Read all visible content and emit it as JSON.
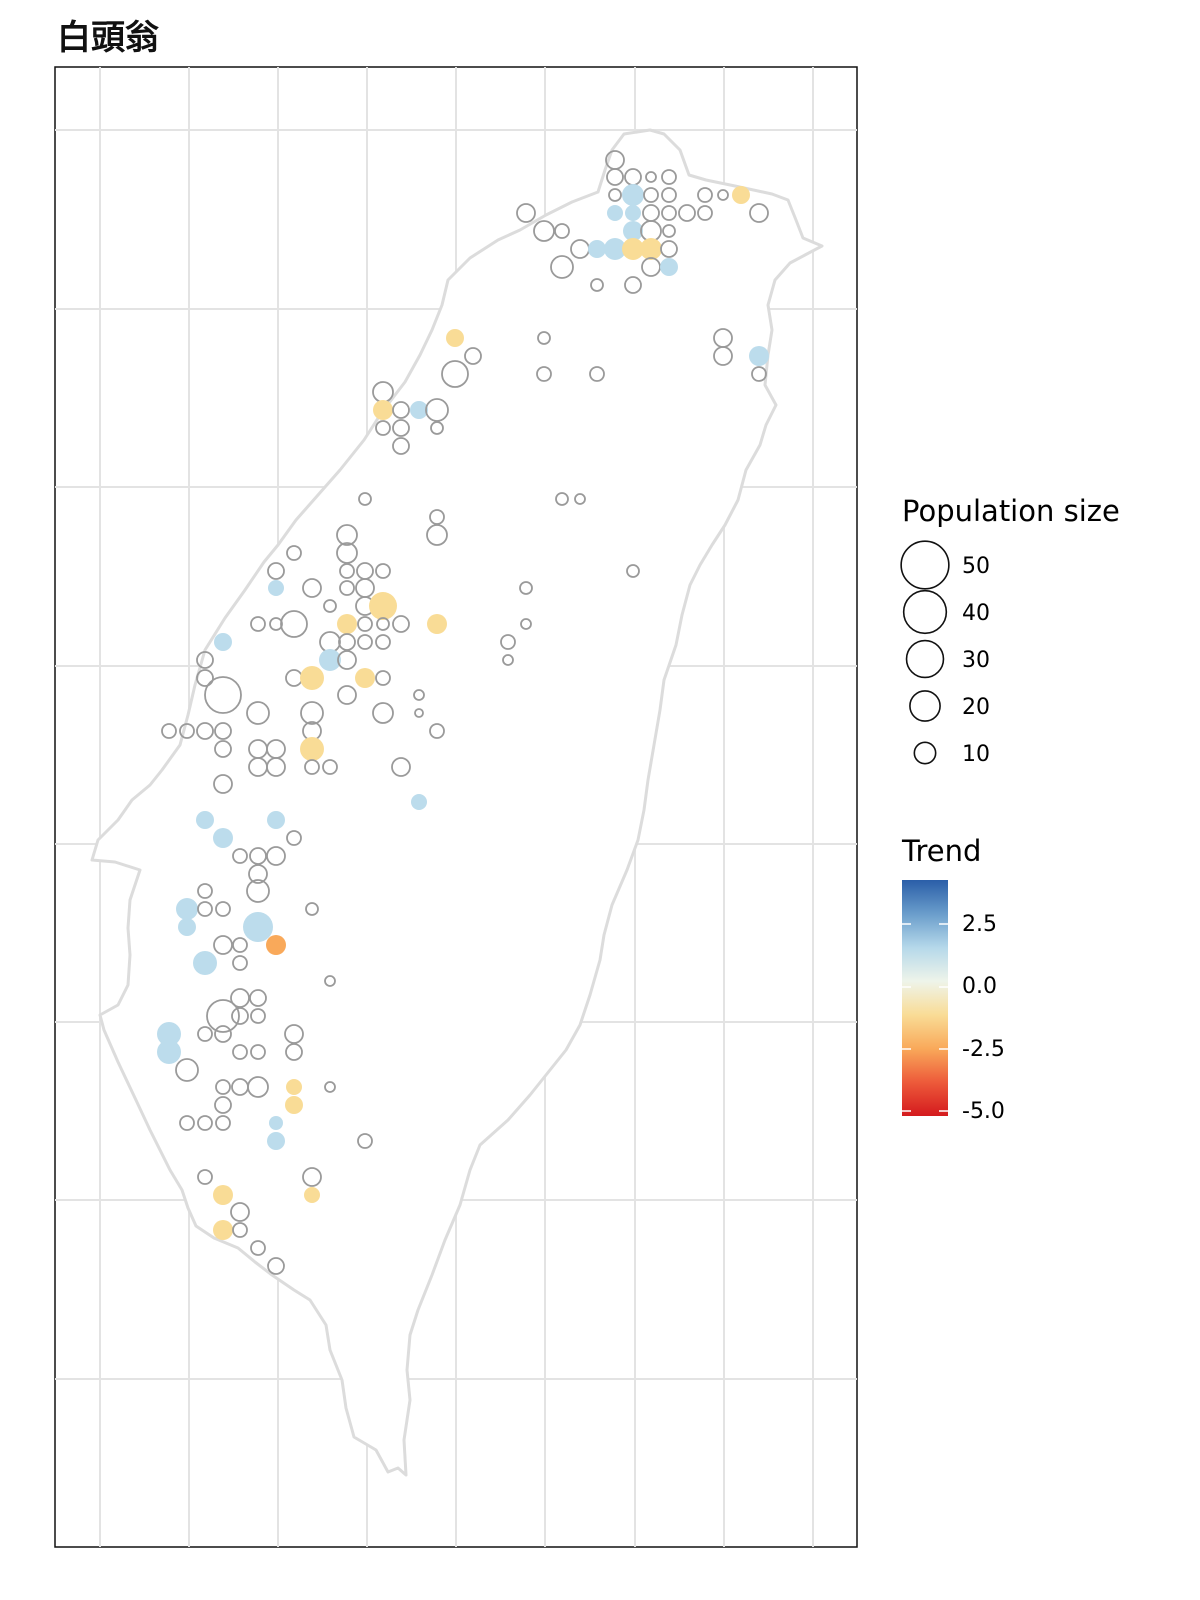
{
  "title": "白頭翁",
  "colors": {
    "panel_border": "#111111",
    "grid": "#e3e3e3",
    "coast": "#dcdcdc",
    "land": "#ffffff",
    "no_trend_stroke": "#9a9a9a",
    "blue": "#bcdcec",
    "yellow": "#f9dc96",
    "orange": "#f9a95a"
  },
  "legend": {
    "size_title": "Population size",
    "size_items": [
      {
        "value": 50,
        "label": "50"
      },
      {
        "value": 40,
        "label": "40"
      },
      {
        "value": 30,
        "label": "30"
      },
      {
        "value": 20,
        "label": "20"
      },
      {
        "value": 10,
        "label": "10"
      }
    ],
    "trend_title": "Trend",
    "trend_labels": [
      "2.5",
      "0.0",
      "-2.5",
      "-5.0"
    ],
    "trend_gradient": [
      "#2a5ea8",
      "#6a9dcb",
      "#b5d8ea",
      "#eef4ea",
      "#f9dc96",
      "#f9a95a",
      "#ed5a3a",
      "#d41a1e"
    ]
  },
  "chart_data": {
    "type": "scatter",
    "title": "白頭翁",
    "legend_position": "right",
    "grid": true,
    "points": [
      [
        615,
        160,
        "n",
        9
      ],
      [
        615,
        177,
        "n",
        8
      ],
      [
        633,
        177,
        "n",
        8
      ],
      [
        651,
        177,
        "n",
        5
      ],
      [
        669,
        177,
        "n",
        7
      ],
      [
        615,
        195,
        "n",
        6
      ],
      [
        633,
        195,
        "b",
        11
      ],
      [
        651,
        195,
        "n",
        7
      ],
      [
        669,
        195,
        "n",
        7
      ],
      [
        705,
        195,
        "n",
        7
      ],
      [
        723,
        195,
        "n",
        5
      ],
      [
        741,
        195,
        "y",
        9
      ],
      [
        526,
        213,
        "n",
        9
      ],
      [
        615,
        213,
        "b",
        8
      ],
      [
        633,
        213,
        "b",
        8
      ],
      [
        651,
        213,
        "n",
        8
      ],
      [
        669,
        213,
        "n",
        7
      ],
      [
        687,
        213,
        "n",
        8
      ],
      [
        705,
        213,
        "n",
        7
      ],
      [
        759,
        213,
        "n",
        9
      ],
      [
        544,
        231,
        "n",
        10
      ],
      [
        562,
        231,
        "n",
        7
      ],
      [
        633,
        231,
        "b",
        10
      ],
      [
        651,
        231,
        "n",
        10
      ],
      [
        669,
        231,
        "n",
        6
      ],
      [
        580,
        249,
        "n",
        9
      ],
      [
        597,
        249,
        "b",
        9
      ],
      [
        615,
        249,
        "b",
        11
      ],
      [
        633,
        249,
        "y",
        11
      ],
      [
        651,
        249,
        "y",
        11
      ],
      [
        669,
        249,
        "n",
        8
      ],
      [
        562,
        267,
        "n",
        11
      ],
      [
        651,
        267,
        "n",
        9
      ],
      [
        669,
        267,
        "b",
        9
      ],
      [
        597,
        285,
        "n",
        6
      ],
      [
        633,
        285,
        "n",
        8
      ],
      [
        455,
        338,
        "y",
        9
      ],
      [
        544,
        338,
        "n",
        6
      ],
      [
        723,
        338,
        "n",
        9
      ],
      [
        473,
        356,
        "n",
        8
      ],
      [
        723,
        356,
        "n",
        9
      ],
      [
        759,
        356,
        "b",
        10
      ],
      [
        455,
        374,
        "n",
        13
      ],
      [
        544,
        374,
        "n",
        7
      ],
      [
        597,
        374,
        "n",
        7
      ],
      [
        759,
        374,
        "n",
        7
      ],
      [
        383,
        392,
        "n",
        10
      ],
      [
        383,
        410,
        "y",
        10
      ],
      [
        401,
        410,
        "n",
        8
      ],
      [
        419,
        410,
        "b",
        9
      ],
      [
        437,
        410,
        "n",
        11
      ],
      [
        383,
        428,
        "n",
        7
      ],
      [
        401,
        428,
        "n",
        8
      ],
      [
        437,
        428,
        "n",
        6
      ],
      [
        401,
        446,
        "n",
        8
      ],
      [
        365,
        499,
        "n",
        6
      ],
      [
        562,
        499,
        "n",
        6
      ],
      [
        580,
        499,
        "n",
        5
      ],
      [
        437,
        517,
        "n",
        7
      ],
      [
        347,
        535,
        "n",
        10
      ],
      [
        437,
        535,
        "n",
        10
      ],
      [
        294,
        553,
        "n",
        7
      ],
      [
        347,
        553,
        "n",
        10
      ],
      [
        276,
        571,
        "n",
        8
      ],
      [
        347,
        571,
        "n",
        7
      ],
      [
        365,
        571,
        "n",
        8
      ],
      [
        383,
        571,
        "n",
        7
      ],
      [
        276,
        588,
        "b",
        8
      ],
      [
        312,
        588,
        "n",
        9
      ],
      [
        347,
        588,
        "n",
        7
      ],
      [
        365,
        588,
        "n",
        9
      ],
      [
        526,
        588,
        "n",
        6
      ],
      [
        633,
        571,
        "n",
        6
      ],
      [
        330,
        606,
        "n",
        6
      ],
      [
        365,
        606,
        "n",
        9
      ],
      [
        383,
        606,
        "y",
        14
      ],
      [
        258,
        624,
        "n",
        7
      ],
      [
        276,
        624,
        "n",
        6
      ],
      [
        294,
        624,
        "n",
        13
      ],
      [
        347,
        624,
        "y",
        10
      ],
      [
        365,
        624,
        "n",
        7
      ],
      [
        383,
        624,
        "n",
        6
      ],
      [
        401,
        624,
        "n",
        8
      ],
      [
        437,
        624,
        "y",
        10
      ],
      [
        526,
        624,
        "n",
        5
      ],
      [
        223,
        642,
        "b",
        9
      ],
      [
        330,
        642,
        "n",
        10
      ],
      [
        347,
        642,
        "n",
        8
      ],
      [
        365,
        642,
        "n",
        7
      ],
      [
        383,
        642,
        "n",
        7
      ],
      [
        508,
        642,
        "n",
        7
      ],
      [
        205,
        660,
        "n",
        8
      ],
      [
        330,
        660,
        "b",
        11
      ],
      [
        347,
        660,
        "n",
        9
      ],
      [
        508,
        660,
        "n",
        5
      ],
      [
        205,
        678,
        "n",
        8
      ],
      [
        294,
        678,
        "n",
        8
      ],
      [
        312,
        678,
        "y",
        12
      ],
      [
        365,
        678,
        "y",
        10
      ],
      [
        383,
        678,
        "n",
        7
      ],
      [
        223,
        695,
        "n",
        18
      ],
      [
        347,
        695,
        "n",
        9
      ],
      [
        419,
        695,
        "n",
        5
      ],
      [
        258,
        713,
        "n",
        11
      ],
      [
        312,
        713,
        "n",
        11
      ],
      [
        383,
        713,
        "n",
        10
      ],
      [
        419,
        713,
        "n",
        4
      ],
      [
        169,
        731,
        "n",
        7
      ],
      [
        187,
        731,
        "n",
        7
      ],
      [
        205,
        731,
        "n",
        8
      ],
      [
        223,
        731,
        "n",
        8
      ],
      [
        312,
        731,
        "n",
        9
      ],
      [
        437,
        731,
        "n",
        7
      ],
      [
        223,
        749,
        "n",
        8
      ],
      [
        258,
        749,
        "n",
        9
      ],
      [
        276,
        749,
        "n",
        9
      ],
      [
        312,
        749,
        "y",
        12
      ],
      [
        258,
        767,
        "n",
        9
      ],
      [
        276,
        767,
        "n",
        9
      ],
      [
        312,
        767,
        "n",
        7
      ],
      [
        330,
        767,
        "n",
        7
      ],
      [
        401,
        767,
        "n",
        9
      ],
      [
        223,
        784,
        "n",
        9
      ],
      [
        419,
        802,
        "b",
        8
      ],
      [
        205,
        820,
        "b",
        9
      ],
      [
        276,
        820,
        "b",
        9
      ],
      [
        223,
        838,
        "b",
        10
      ],
      [
        294,
        838,
        "n",
        7
      ],
      [
        240,
        856,
        "n",
        7
      ],
      [
        258,
        856,
        "n",
        8
      ],
      [
        276,
        856,
        "n",
        9
      ],
      [
        258,
        874,
        "n",
        9
      ],
      [
        205,
        891,
        "n",
        7
      ],
      [
        258,
        891,
        "n",
        11
      ],
      [
        187,
        909,
        "b",
        11
      ],
      [
        205,
        909,
        "n",
        7
      ],
      [
        223,
        909,
        "n",
        7
      ],
      [
        312,
        909,
        "n",
        6
      ],
      [
        187,
        927,
        "b",
        9
      ],
      [
        258,
        927,
        "b",
        15
      ],
      [
        223,
        945,
        "n",
        9
      ],
      [
        240,
        945,
        "n",
        7
      ],
      [
        276,
        945,
        "o",
        10
      ],
      [
        205,
        963,
        "b",
        12
      ],
      [
        240,
        963,
        "n",
        7
      ],
      [
        330,
        981,
        "n",
        5
      ],
      [
        240,
        998,
        "n",
        9
      ],
      [
        258,
        998,
        "n",
        8
      ],
      [
        223,
        1016,
        "n",
        16
      ],
      [
        240,
        1016,
        "n",
        8
      ],
      [
        258,
        1016,
        "n",
        7
      ],
      [
        169,
        1034,
        "b",
        12
      ],
      [
        205,
        1034,
        "n",
        7
      ],
      [
        223,
        1034,
        "n",
        8
      ],
      [
        294,
        1034,
        "n",
        9
      ],
      [
        169,
        1052,
        "b",
        12
      ],
      [
        240,
        1052,
        "n",
        7
      ],
      [
        258,
        1052,
        "n",
        7
      ],
      [
        294,
        1052,
        "n",
        8
      ],
      [
        187,
        1070,
        "n",
        11
      ],
      [
        223,
        1087,
        "n",
        7
      ],
      [
        240,
        1087,
        "n",
        8
      ],
      [
        258,
        1087,
        "n",
        10
      ],
      [
        294,
        1087,
        "y",
        8
      ],
      [
        330,
        1087,
        "n",
        5
      ],
      [
        223,
        1105,
        "n",
        8
      ],
      [
        294,
        1105,
        "y",
        9
      ],
      [
        187,
        1123,
        "n",
        7
      ],
      [
        205,
        1123,
        "n",
        7
      ],
      [
        223,
        1123,
        "n",
        7
      ],
      [
        276,
        1123,
        "b",
        7
      ],
      [
        276,
        1141,
        "b",
        9
      ],
      [
        365,
        1141,
        "n",
        7
      ],
      [
        205,
        1177,
        "n",
        7
      ],
      [
        312,
        1177,
        "n",
        9
      ],
      [
        223,
        1195,
        "y",
        10
      ],
      [
        312,
        1195,
        "y",
        8
      ],
      [
        240,
        1212,
        "n",
        9
      ],
      [
        223,
        1230,
        "y",
        10
      ],
      [
        240,
        1230,
        "n",
        7
      ],
      [
        258,
        1248,
        "n",
        7
      ],
      [
        276,
        1266,
        "n",
        8
      ]
    ]
  }
}
